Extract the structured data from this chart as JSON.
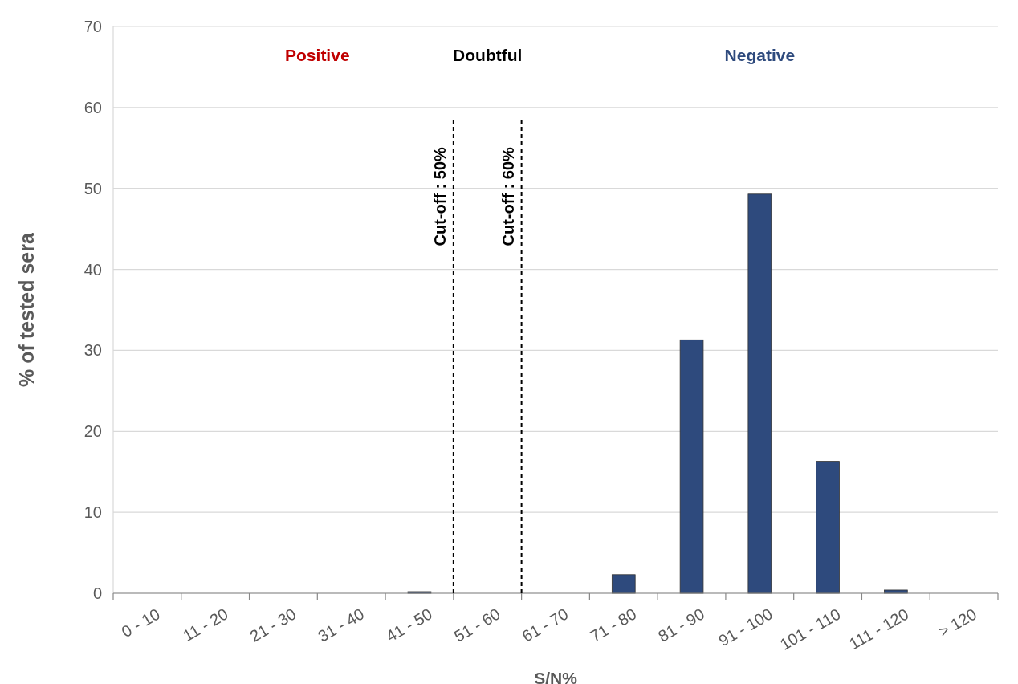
{
  "chart_data": {
    "type": "bar",
    "xlabel": "S/N%",
    "ylabel": "% of tested sera",
    "categories": [
      "0 - 10",
      "11 - 20",
      "21 - 30",
      "31 - 40",
      "41 - 50",
      "51 - 60",
      "61 - 70",
      "71 - 80",
      "81 - 90",
      "91 - 100",
      "101 - 110",
      "111 - 120",
      "> 120"
    ],
    "values": [
      0,
      0,
      0,
      0,
      0.2,
      0,
      0,
      2.3,
      31.3,
      49.3,
      16.3,
      0.4,
      0
    ],
    "color": "#2e4a7d",
    "ylim": [
      0,
      70
    ],
    "yticks": [
      0,
      10,
      20,
      30,
      40,
      50,
      60,
      70
    ],
    "grid": "y",
    "ref_lines": [
      {
        "axis": "x",
        "value": "51 - 60",
        "label": "Cut-off : 50%",
        "line_style": "dashed",
        "color": "#000000"
      },
      {
        "axis": "x",
        "value": "61 - 70",
        "label": "Cut-off : 60%",
        "line_style": "dashed",
        "color": "#000000"
      }
    ],
    "annotations": [
      "Positive",
      "Doubtful",
      "Negative"
    ]
  }
}
